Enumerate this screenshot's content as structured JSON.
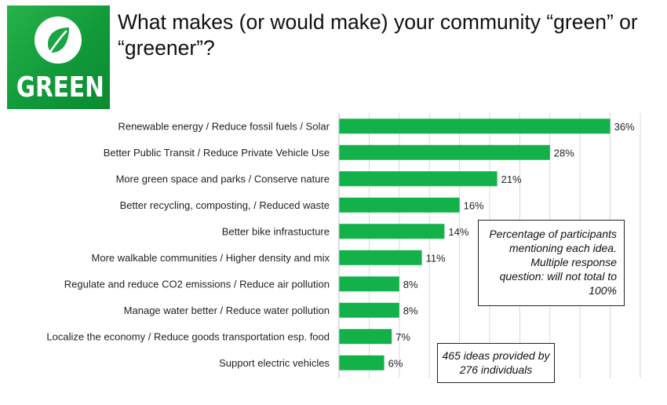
{
  "logo": {
    "text": "GREEN",
    "icon": "leaf-icon",
    "colors": {
      "bg": "#1aa543",
      "fg": "#ffffff"
    }
  },
  "title": "What makes (or would make) your community “green” or “greener”?",
  "notes": {
    "percentage": "Percentage of participants mentioning each idea. Multiple response question:  will not total to 100%",
    "ideas": "465 ideas provided by 276 individuals"
  },
  "chart_data": {
    "type": "bar",
    "orientation": "horizontal",
    "title": "What makes (or would make) your community “green” or “greener”?",
    "xlabel": "",
    "ylabel": "",
    "xlim": [
      0,
      40
    ],
    "grid": true,
    "bar_color": "#12b14a",
    "categories": [
      "Renewable energy / Reduce fossil fuels / Solar",
      "Better Public Transit / Reduce Private Vehicle Use",
      "More green space and parks / Conserve nature",
      "Better recycling, composting, / Reduced waste",
      "Better bike infrastucture",
      "More walkable communities / Higher density and mix",
      "Regulate and reduce CO2 emissions / Reduce air pollution",
      "Manage water better / Reduce water pollution",
      "Localize the economy / Reduce goods transportation esp. food",
      "Support electric vehicles"
    ],
    "values": [
      36,
      28,
      21,
      16,
      14,
      11,
      8,
      8,
      7,
      6
    ],
    "labels": [
      "36%",
      "28%",
      "21%",
      "16%",
      "14%",
      "11%",
      "8%",
      "8%",
      "7%",
      "6%"
    ]
  }
}
